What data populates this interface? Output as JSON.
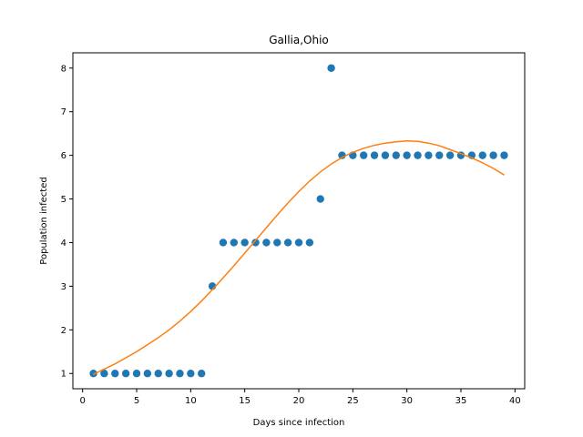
{
  "chart_data": {
    "type": "scatter",
    "title": "Gallia,Ohio",
    "xlabel": "Days since infection",
    "ylabel": "Population infected",
    "xlim": [
      -0.9,
      40.9
    ],
    "ylim": [
      0.65,
      8.35
    ],
    "xticks": [
      0,
      5,
      10,
      15,
      20,
      25,
      30,
      35,
      40
    ],
    "yticks": [
      1,
      2,
      3,
      4,
      5,
      6,
      7,
      8
    ],
    "grid": false,
    "series": [
      {
        "kind": "scatter",
        "color": "#1f77b4",
        "x": [
          1,
          2,
          3,
          4,
          5,
          6,
          7,
          8,
          9,
          10,
          11,
          12,
          13,
          14,
          15,
          16,
          17,
          18,
          19,
          20,
          21,
          22,
          23,
          24,
          25,
          26,
          27,
          28,
          29,
          30,
          31,
          32,
          33,
          34,
          35,
          36,
          37,
          38,
          39
        ],
        "y": [
          1,
          1,
          1,
          1,
          1,
          1,
          1,
          1,
          1,
          1,
          1,
          3,
          4,
          4,
          4,
          4,
          4,
          4,
          4,
          4,
          4,
          5,
          8,
          6,
          6,
          6,
          6,
          6,
          6,
          6,
          6,
          6,
          6,
          6,
          6,
          6,
          6,
          6,
          6
        ]
      },
      {
        "kind": "line",
        "color": "#ff7f0e",
        "x": [
          1,
          2,
          3,
          4,
          5,
          6,
          7,
          8,
          9,
          10,
          11,
          12,
          13,
          14,
          15,
          16,
          17,
          18,
          19,
          20,
          21,
          22,
          23,
          24,
          25,
          26,
          27,
          28,
          29,
          30,
          31,
          32,
          33,
          34,
          35,
          36,
          37,
          38,
          39
        ],
        "y": [
          0.98,
          1.1,
          1.22,
          1.36,
          1.5,
          1.66,
          1.82,
          2.0,
          2.2,
          2.42,
          2.66,
          2.92,
          3.19,
          3.47,
          3.76,
          4.05,
          4.34,
          4.63,
          4.91,
          5.17,
          5.41,
          5.62,
          5.8,
          5.95,
          6.07,
          6.16,
          6.23,
          6.28,
          6.31,
          6.33,
          6.32,
          6.28,
          6.22,
          6.13,
          6.04,
          5.94,
          5.83,
          5.7,
          5.55
        ]
      }
    ]
  }
}
